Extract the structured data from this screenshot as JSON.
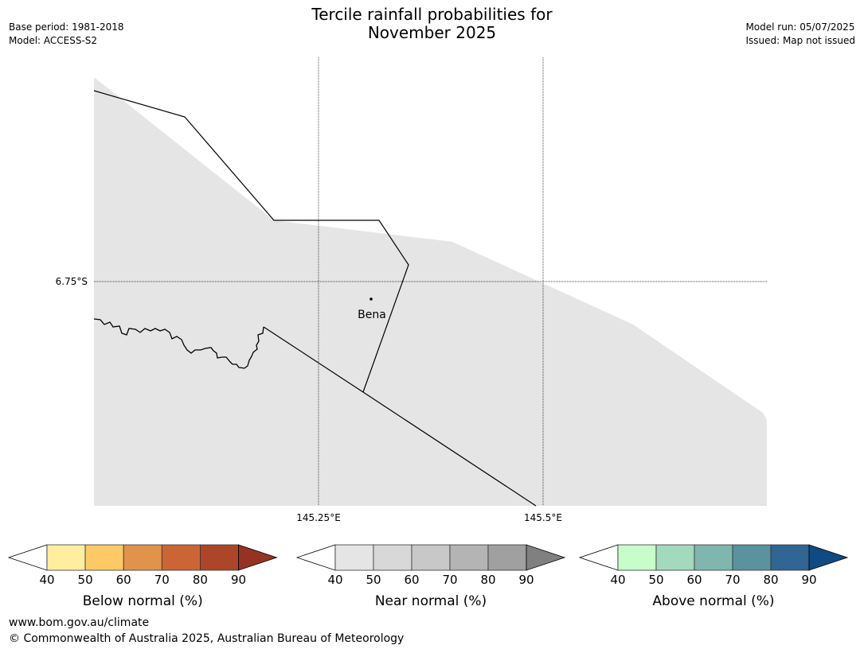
{
  "header": {
    "title_line1": "Tercile rainfall probabilities for",
    "title_line2": "November 2025",
    "base_period": "Base period: 1981-2018",
    "model": "Model: ACCESS-S2",
    "model_run": "Model run: 05/07/2025",
    "issued": "Issued: Map not issued"
  },
  "map": {
    "gridlines": {
      "lat_label": "6.75°S",
      "lon_labels": [
        "145.25°E",
        "145.5°E"
      ]
    },
    "places": [
      {
        "name": "Bena"
      }
    ],
    "land_color": "#e5e5e5",
    "boundary_color": "#000000"
  },
  "legends": [
    {
      "label": "Below normal (%)",
      "ticks": [
        "40",
        "50",
        "60",
        "70",
        "80",
        "90"
      ],
      "colors": [
        "#ffeea0",
        "#fdc967",
        "#e0934a",
        "#cc6535",
        "#ad4628",
        "#953322"
      ]
    },
    {
      "label": "Near normal (%)",
      "ticks": [
        "40",
        "50",
        "60",
        "70",
        "80",
        "90"
      ],
      "colors": [
        "#e5e5e5",
        "#d8d8d8",
        "#c8c8c8",
        "#b4b4b4",
        "#a0a0a0",
        "#808080"
      ]
    },
    {
      "label": "Above normal (%)",
      "ticks": [
        "40",
        "50",
        "60",
        "70",
        "80",
        "90"
      ],
      "colors": [
        "#c7fdc9",
        "#a3d9bd",
        "#80b6b0",
        "#5a92a0",
        "#306594",
        "#0f4a82"
      ]
    }
  ],
  "footer": {
    "url": "www.bom.gov.au/climate",
    "copyright": "© Commonwealth of Australia 2025, Australian Bureau of Meteorology"
  }
}
